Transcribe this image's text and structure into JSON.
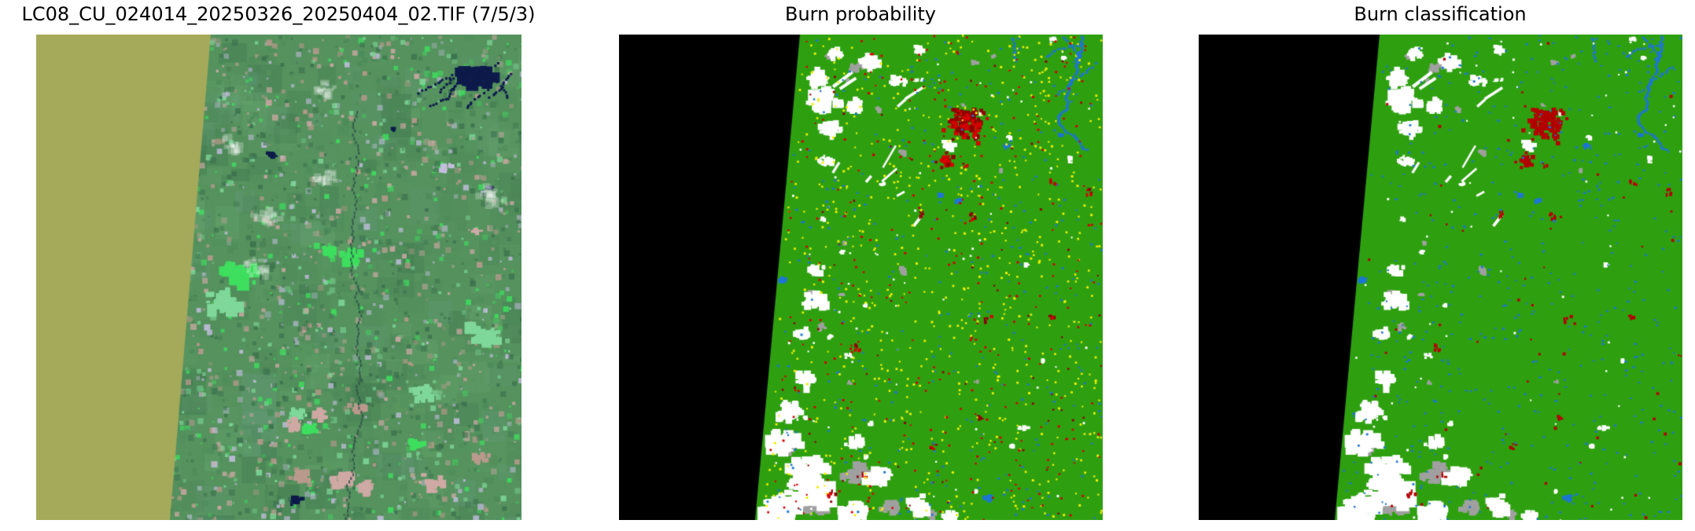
{
  "figure": {
    "background_color": "#ffffff",
    "title_color": "#000000"
  },
  "panels": [
    {
      "id": "satellite",
      "title": "LC08_CU_024014_20250326_20250404_02.TIF (7/5/3)",
      "kind": "satellite-false-color-image",
      "colors": {
        "scene_edge_fill_olive": "#a4aa5a",
        "terrain_green": "#55925e",
        "terrain_dark_green": "#3a704b",
        "terrain_mid_green": "#4c8a59",
        "terrain_bright_green": "#3ede5e",
        "terrain_pale_green": "#7fd89a",
        "terrain_pink": "#cfa9a4",
        "terrain_tan": "#b99a8c",
        "terrain_lavender": "#c3bedd",
        "water_navy": "#0d1a4a",
        "river_dark": "#2e5048",
        "haze_white": "#ffffff"
      }
    },
    {
      "id": "burn-probability",
      "title": "Burn probability",
      "kind": "classified-raster-map",
      "classes": [
        {
          "name": "nodata",
          "color": "#000000"
        },
        {
          "name": "unburned-vegetation",
          "color": "#2ea010"
        },
        {
          "name": "low-burn-probability",
          "color": "#f0ef00"
        },
        {
          "name": "high-burn-probability",
          "color": "#d40000"
        },
        {
          "name": "very-high-burn-probability",
          "color": "#8f0000"
        },
        {
          "name": "cloud",
          "color": "#ffffff"
        },
        {
          "name": "cloud-shadow",
          "color": "#a0a0a0"
        },
        {
          "name": "water",
          "color": "#1e76d2"
        }
      ]
    },
    {
      "id": "burn-classification",
      "title": "Burn classification",
      "kind": "classified-raster-map",
      "classes": [
        {
          "name": "nodata",
          "color": "#000000"
        },
        {
          "name": "unburned-vegetation",
          "color": "#2ea010"
        },
        {
          "name": "burned",
          "color": "#b30000"
        },
        {
          "name": "cloud",
          "color": "#ffffff"
        },
        {
          "name": "cloud-shadow",
          "color": "#a0a0a0"
        },
        {
          "name": "water",
          "color": "#1e76d2"
        }
      ]
    }
  ]
}
